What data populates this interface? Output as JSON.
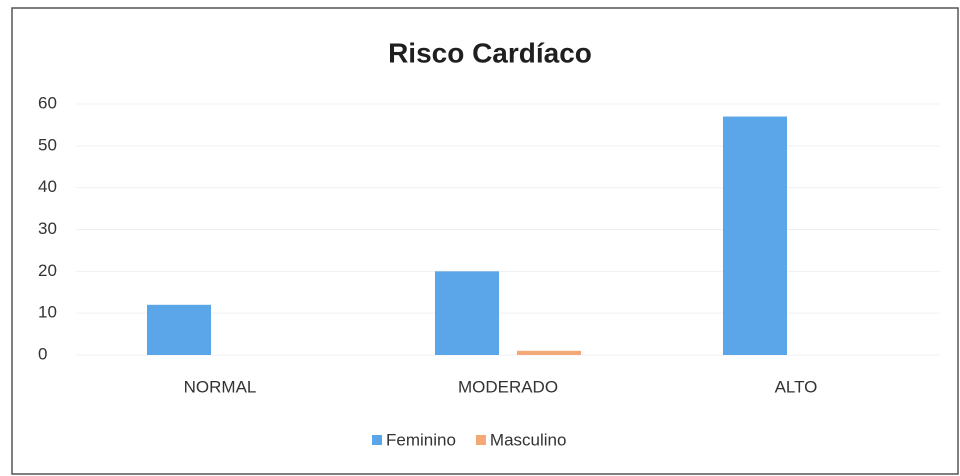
{
  "chart_data": {
    "type": "bar",
    "title": "Risco Cardíaco",
    "categories": [
      "NORMAL",
      "MODERADO",
      "ALTO"
    ],
    "series": [
      {
        "name": "Feminino",
        "color": "#5ba6e8",
        "values": [
          12,
          20,
          57
        ]
      },
      {
        "name": "Masculino",
        "color": "#f2a977",
        "values": [
          0,
          1,
          0
        ]
      }
    ],
    "ylim": [
      0,
      60
    ],
    "yticks": [
      0,
      10,
      20,
      30,
      40,
      50,
      60
    ],
    "grid": true,
    "legend": "bottom"
  }
}
